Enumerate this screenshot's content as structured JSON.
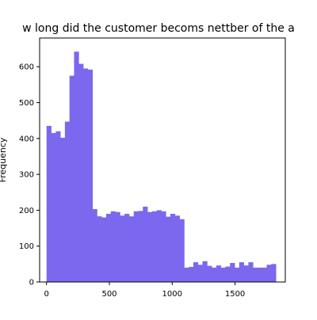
{
  "chart_data": {
    "type": "bar",
    "title": "w long did the customer becoms nettber of the a",
    "xlabel": "",
    "ylabel": "Frequency",
    "xlim": [
      -55,
      1900
    ],
    "ylim": [
      0,
      680
    ],
    "x_ticks": [
      0,
      500,
      1000,
      1500
    ],
    "y_ticks": [
      0,
      100,
      200,
      300,
      400,
      500,
      600
    ],
    "grid": false,
    "bar_color": "#7b68ee",
    "bin_edges": [
      0,
      36.5,
      73,
      109.5,
      146,
      182.5,
      219,
      255.5,
      292,
      328.5,
      365,
      401.5,
      438,
      474.5,
      511,
      547.5,
      584,
      620.5,
      657,
      693.5,
      730,
      766.5,
      803,
      839.5,
      876,
      912.5,
      949,
      985.5,
      1022,
      1058.5,
      1095,
      1131.5,
      1168,
      1204.5,
      1241,
      1277.5,
      1314,
      1350.5,
      1387,
      1423.5,
      1460,
      1496.5,
      1533,
      1569.5,
      1606,
      1642.5,
      1679,
      1715.5,
      1752,
      1788.5,
      1825
    ],
    "values": [
      435,
      415,
      420,
      402,
      447,
      575,
      642,
      608,
      595,
      592,
      203,
      183,
      180,
      190,
      197,
      195,
      185,
      190,
      183,
      197,
      198,
      210,
      195,
      197,
      200,
      197,
      182,
      190,
      185,
      175,
      40,
      42,
      55,
      48,
      58,
      45,
      40,
      46,
      40,
      43,
      53,
      40,
      55,
      46,
      55,
      40,
      40,
      40,
      48,
      50
    ]
  }
}
